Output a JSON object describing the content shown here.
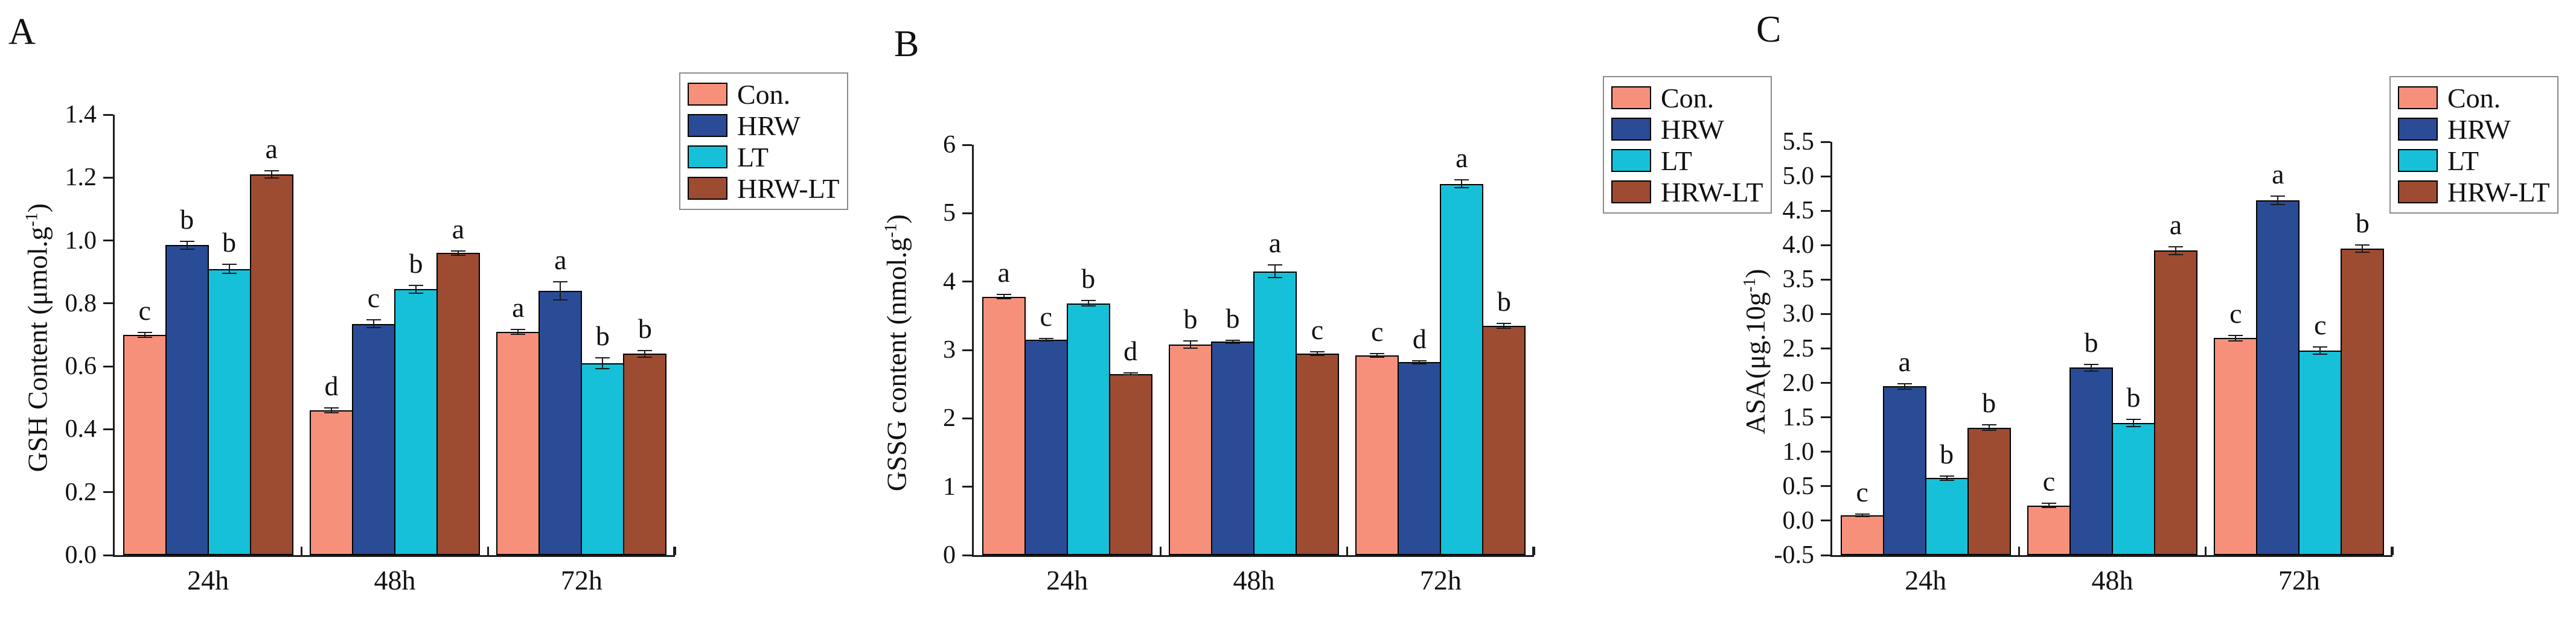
{
  "figure": {
    "background": "#ffffff",
    "axis_color": "#1c1c1c",
    "text_color": "#111111"
  },
  "legend": {
    "items": [
      {
        "label": "Con.",
        "color": "#F6907A"
      },
      {
        "label": "HRW",
        "color": "#2A4C96"
      },
      {
        "label": "LT",
        "color": "#16C0D9"
      },
      {
        "label": "HRW-LT",
        "color": "#9D4B31"
      }
    ]
  },
  "chart_data": [
    {
      "panel": "A",
      "type": "bar",
      "title": "",
      "xlabel": "",
      "ylabel": "GSH Content (μmol.g⁻¹)",
      "ylabel_parts": {
        "pre": "GSH Content (μmol.g",
        "sup": "-1",
        "post": ")"
      },
      "categories": [
        "24h",
        "48h",
        "72h"
      ],
      "ylim": [
        0,
        1.4
      ],
      "yticks": [
        "0.0",
        "0.2",
        "0.4",
        "0.6",
        "0.8",
        "1.0",
        "1.2",
        "1.4"
      ],
      "grid": false,
      "legend_position": "top-right",
      "series": [
        {
          "name": "Con.",
          "values": [
            0.7,
            0.46,
            0.71
          ],
          "errors": [
            0.008,
            0.008,
            0.008
          ],
          "letters": [
            "c",
            "d",
            "a"
          ]
        },
        {
          "name": "HRW",
          "values": [
            0.985,
            0.735,
            0.84
          ],
          "errors": [
            0.012,
            0.012,
            0.028
          ],
          "letters": [
            "b",
            "c",
            "a"
          ]
        },
        {
          "name": "LT",
          "values": [
            0.91,
            0.845,
            0.61
          ],
          "errors": [
            0.015,
            0.012,
            0.018
          ],
          "letters": [
            "b",
            "b",
            "b"
          ]
        },
        {
          "name": "HRW-LT",
          "values": [
            1.21,
            0.96,
            0.64
          ],
          "errors": [
            0.012,
            0.006,
            0.01
          ],
          "letters": [
            "a",
            "a",
            "b"
          ]
        }
      ]
    },
    {
      "panel": "B",
      "type": "bar",
      "title": "",
      "xlabel": "",
      "ylabel": "GSSG content (nmol.g⁻¹)",
      "ylabel_parts": {
        "pre": "GSSG content (nmol.g",
        "sup": "-1",
        "post": ")"
      },
      "categories": [
        "24h",
        "48h",
        "72h"
      ],
      "ylim": [
        0,
        6
      ],
      "yticks": [
        "0",
        "1",
        "2",
        "3",
        "4",
        "5",
        "6"
      ],
      "grid": false,
      "legend_position": "top-right",
      "series": [
        {
          "name": "Con.",
          "values": [
            3.78,
            3.08,
            2.92
          ],
          "errors": [
            0.03,
            0.05,
            0.03
          ],
          "letters": [
            "a",
            "b",
            "c"
          ]
        },
        {
          "name": "HRW",
          "values": [
            3.15,
            3.12,
            2.82
          ],
          "errors": [
            0.02,
            0.02,
            0.02
          ],
          "letters": [
            "c",
            "b",
            "d"
          ]
        },
        {
          "name": "LT",
          "values": [
            3.68,
            4.15,
            5.43
          ],
          "errors": [
            0.04,
            0.09,
            0.06
          ],
          "letters": [
            "b",
            "a",
            "a"
          ]
        },
        {
          "name": "HRW-LT",
          "values": [
            2.65,
            2.95,
            3.35
          ],
          "errors": [
            0.015,
            0.025,
            0.035
          ],
          "letters": [
            "d",
            "c",
            "b"
          ]
        }
      ]
    },
    {
      "panel": "C",
      "type": "bar",
      "title": "",
      "xlabel": "",
      "ylabel": "ASA(μg.10g⁻¹)",
      "ylabel_parts": {
        "pre": "ASA(μg.10g",
        "sup": "-1",
        "post": ")"
      },
      "categories": [
        "24h",
        "48h",
        "72h"
      ],
      "ylim": [
        -0.5,
        5.5
      ],
      "yticks": [
        "-0.5",
        "0.0",
        "0.5",
        "1.0",
        "1.5",
        "2.0",
        "2.5",
        "3.0",
        "3.5",
        "4.0",
        "4.5",
        "5.0",
        "5.5"
      ],
      "grid": false,
      "legend_position": "top-right",
      "series": [
        {
          "name": "Con.",
          "values": [
            0.08,
            0.22,
            2.65
          ],
          "errors": [
            0.02,
            0.03,
            0.04
          ],
          "letters": [
            "c",
            "c",
            "c"
          ]
        },
        {
          "name": "HRW",
          "values": [
            1.95,
            2.22,
            4.65
          ],
          "errors": [
            0.04,
            0.05,
            0.06
          ],
          "letters": [
            "a",
            "b",
            "a"
          ]
        },
        {
          "name": "LT",
          "values": [
            0.62,
            1.42,
            2.47
          ],
          "errors": [
            0.03,
            0.05,
            0.05
          ],
          "letters": [
            "b",
            "b",
            "c"
          ]
        },
        {
          "name": "HRW-LT",
          "values": [
            1.35,
            3.92,
            3.95
          ],
          "errors": [
            0.04,
            0.06,
            0.05
          ],
          "letters": [
            "b",
            "a",
            "b"
          ]
        }
      ]
    }
  ]
}
